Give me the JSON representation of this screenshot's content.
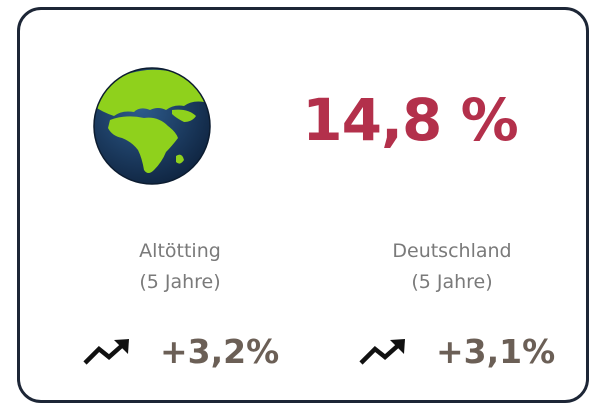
{
  "main_value": "14,8 %",
  "columns": [
    {
      "region": "Altötting",
      "period": "(5 Jahre)",
      "change": "+3,2%"
    },
    {
      "region": "Deutschland",
      "period": "(5 Jahre)",
      "change": "+3,1%"
    }
  ]
}
